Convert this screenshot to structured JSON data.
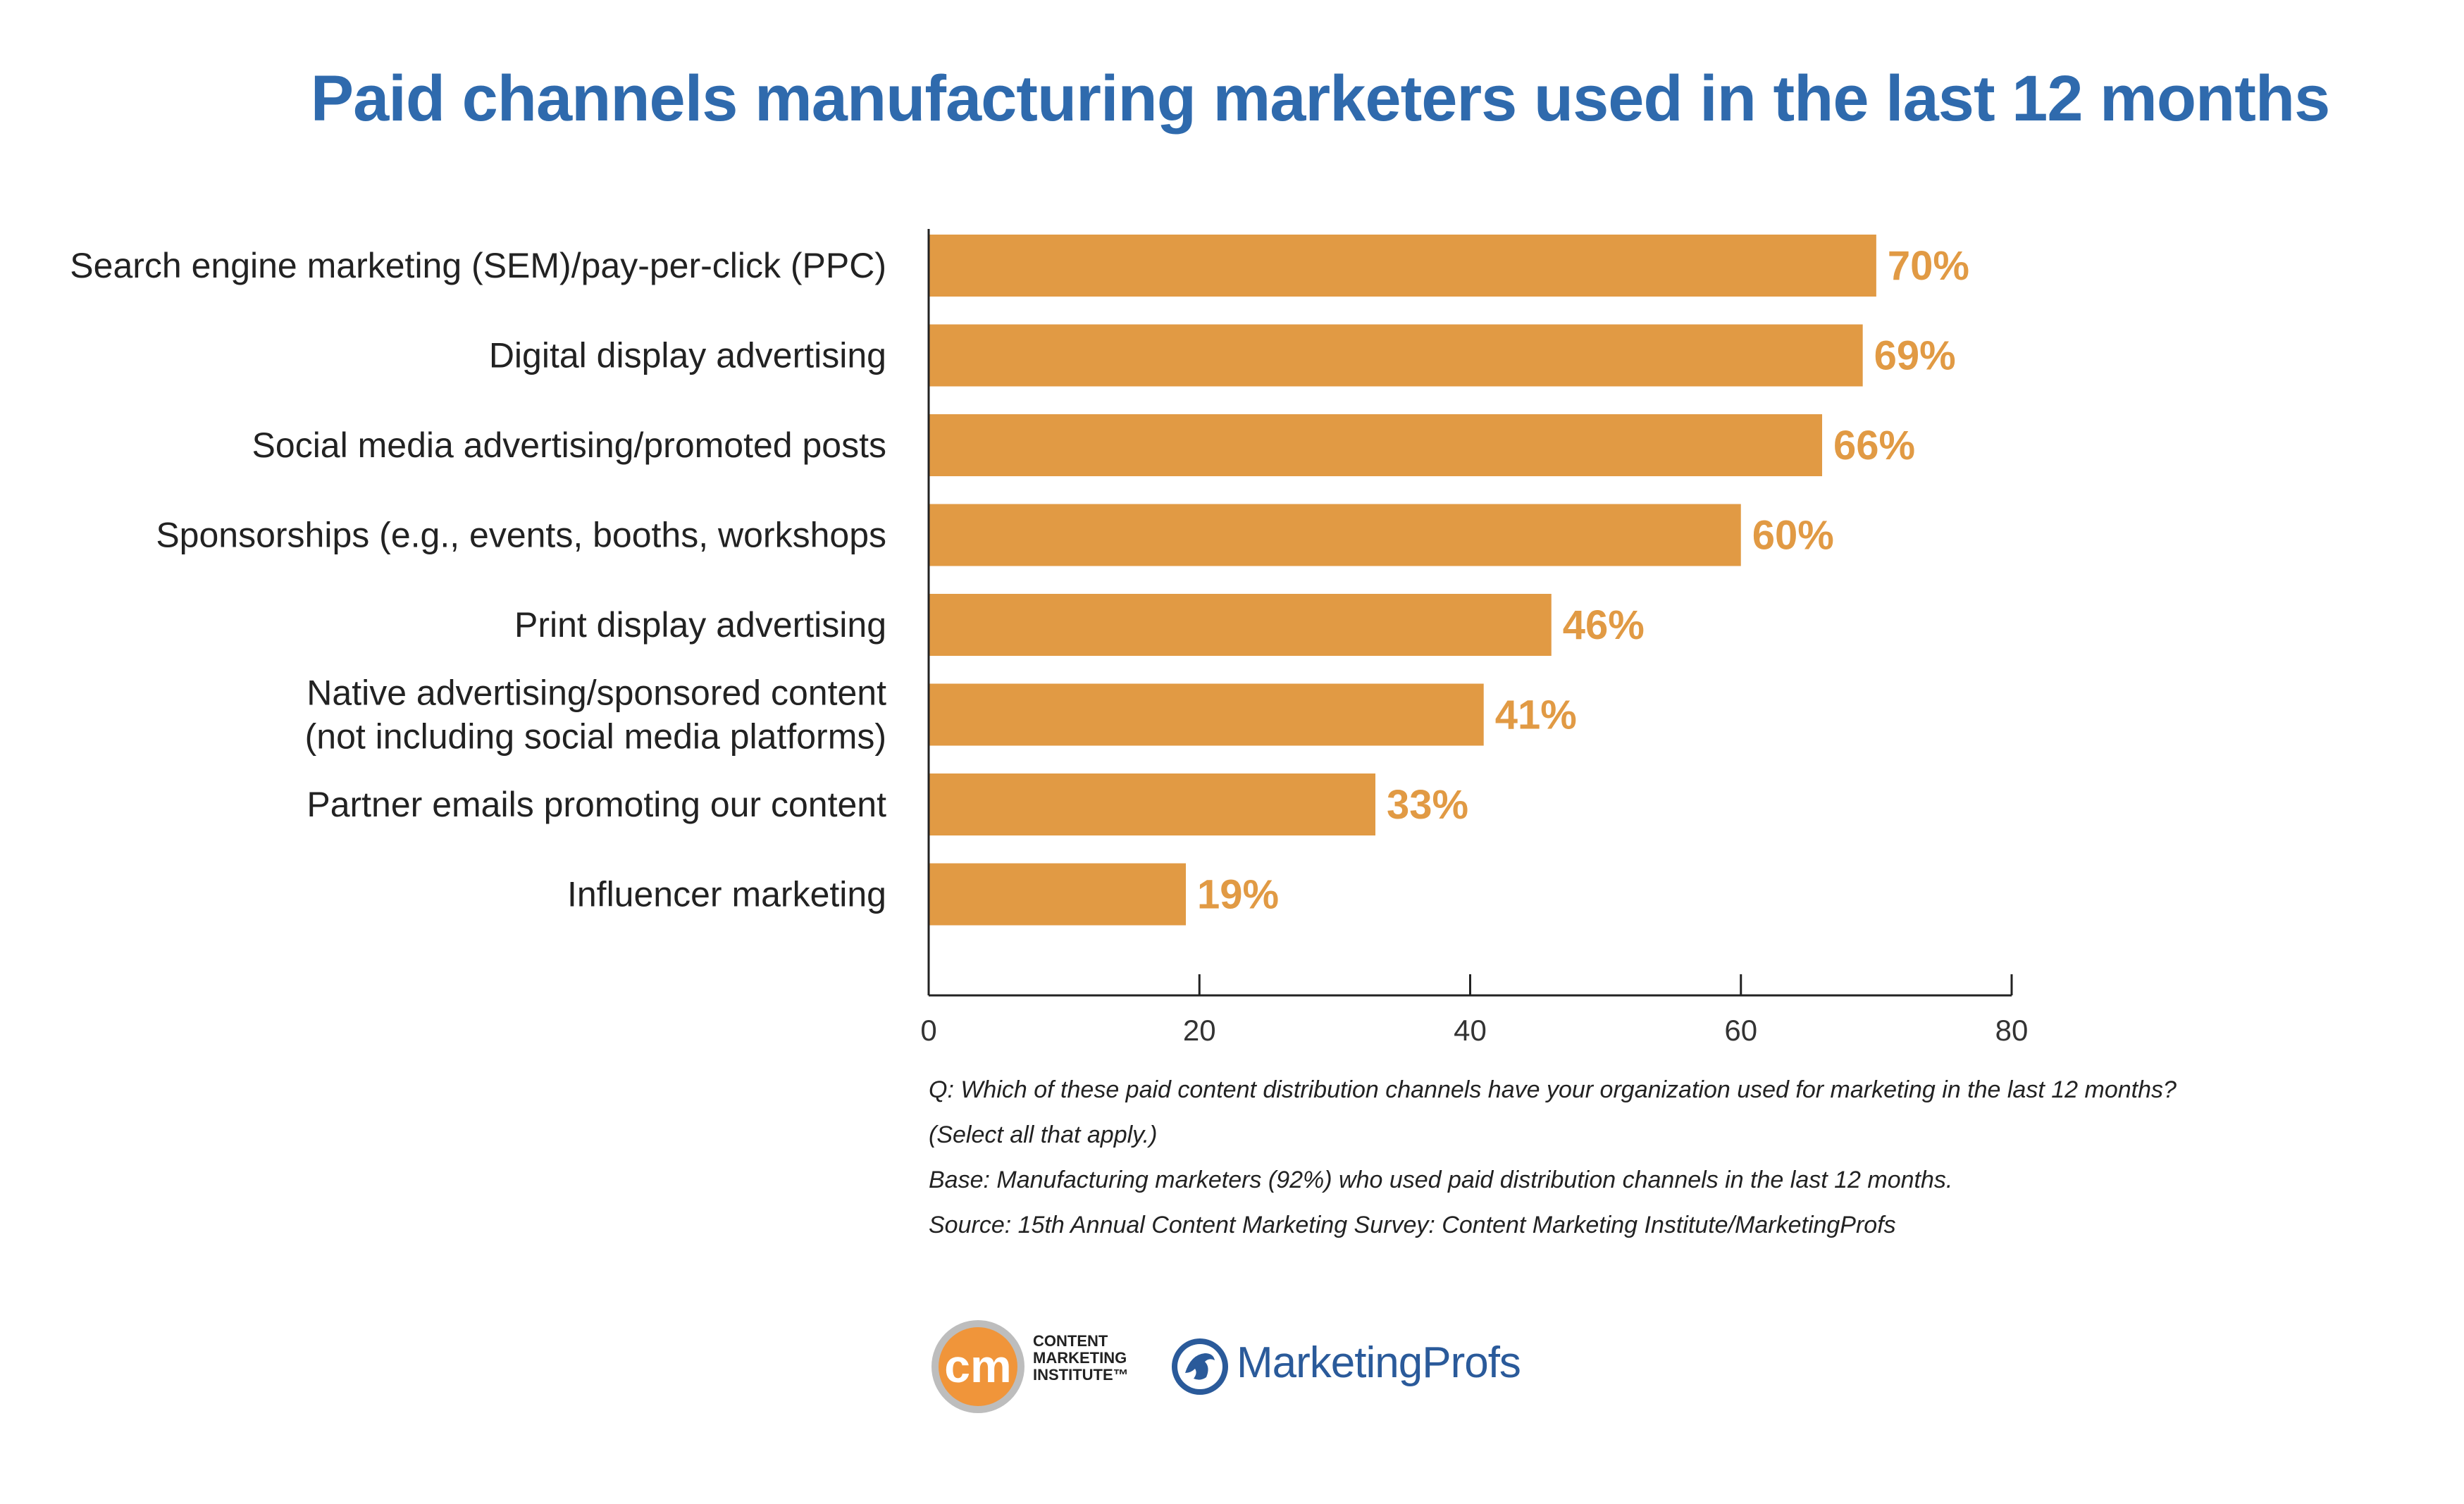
{
  "chart_data": {
    "type": "bar",
    "orientation": "horizontal",
    "title": "Paid channels manufacturing marketers used in the last 12 months",
    "categories": [
      [
        "Search engine marketing (SEM)/pay-per-click (PPC)"
      ],
      [
        "Digital display advertising"
      ],
      [
        "Social media advertising/promoted posts"
      ],
      [
        "Sponsorships (e.g., events, booths, workshops"
      ],
      [
        "Print display advertising"
      ],
      [
        "Native advertising/sponsored content",
        "(not including social media platforms)"
      ],
      [
        "Partner emails promoting our content"
      ],
      [
        "Influencer marketing"
      ]
    ],
    "values": [
      70,
      69,
      66,
      60,
      46,
      41,
      33,
      19
    ],
    "value_labels": [
      "70%",
      "69%",
      "66%",
      "60%",
      "46%",
      "41%",
      "33%",
      "19%"
    ],
    "xlim": [
      0,
      80
    ],
    "xticks": [
      "0",
      "20",
      "40",
      "60",
      "80"
    ],
    "xlabel": "",
    "ylabel": "",
    "grid": false,
    "bar_color": "#e19a44"
  },
  "notes": {
    "question_line1": "Q: Which of these paid content distribution channels have your organization used for marketing in the last 12 months?",
    "question_line2": "(Select all that apply.)",
    "base": "Base: Manufacturing marketers (92%) who used paid distribution channels in the last 12 months.",
    "source": "Source: 15th Annual Content Marketing Survey: Content Marketing Institute/MarketingProfs"
  },
  "logos": {
    "cmi_mark": "cm",
    "cmi_line1": "CONTENT",
    "cmi_line2": "MARKETING",
    "cmi_line3": "INSTITUTE™",
    "marketingprofs": "MarketingProfs"
  },
  "colors": {
    "title": "#2f6aad",
    "bar": "#e19a44",
    "value_label": "#e19a44"
  }
}
